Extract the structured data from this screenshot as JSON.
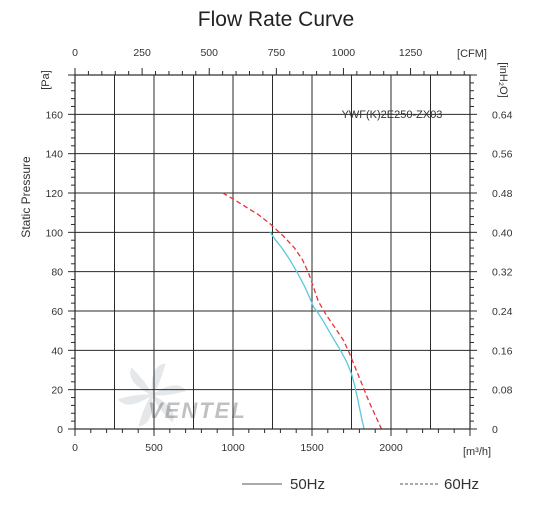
{
  "chart_data": {
    "type": "line",
    "title": "Flow Rate Curve",
    "model": "YWF(K)2E250-ZX03",
    "watermark_logo_text": "VENTEL",
    "xlabel": "",
    "xunit": "[m³/h]",
    "x2unit": "[CFM]",
    "ylabel": "Static Pressure",
    "yunit": "[Pa]",
    "y2unit": "[inH₂O]",
    "xlim": [
      0,
      2500
    ],
    "ylim": [
      0,
      180
    ],
    "x_ticks": [
      0,
      500,
      1000,
      1500,
      2000
    ],
    "x_tick_labels": [
      "0",
      "500",
      "1000",
      "1500",
      "2000"
    ],
    "x2_ticks_m3h": [
      0,
      424.75,
      849.5,
      1274.25,
      1699,
      2123.75
    ],
    "x2_tick_labels": [
      "0",
      "250",
      "500",
      "750",
      "1000",
      "1250"
    ],
    "y_ticks": [
      0,
      20,
      40,
      60,
      80,
      100,
      120,
      140,
      160
    ],
    "y_tick_labels": [
      "0",
      "20",
      "40",
      "60",
      "80",
      "100",
      "120",
      "140",
      "160"
    ],
    "y2_tick_labels": [
      "0",
      "0.08",
      "0.16",
      "0.24",
      "0.32",
      "0.40",
      "0.48",
      "0.56",
      "0.64"
    ],
    "grid": true,
    "legend_position": "bottom",
    "series": [
      {
        "name": "50Hz",
        "color": "#5bc8dc",
        "style": "solid",
        "x": [
          1235,
          1270,
          1310,
          1360,
          1410,
          1450,
          1490,
          1510,
          1530,
          1570,
          1620,
          1680,
          1720,
          1750,
          1770,
          1790,
          1810,
          1830
        ],
        "y": [
          100,
          96,
          92,
          86,
          79,
          73,
          66,
          62,
          60,
          55,
          48,
          40,
          34,
          28,
          22,
          15,
          7,
          0
        ]
      },
      {
        "name": "60Hz",
        "color": "#e8313a",
        "style": "dashed",
        "x": [
          935,
          1000,
          1080,
          1160,
          1240,
          1320,
          1390,
          1440,
          1480,
          1510,
          1540,
          1590,
          1650,
          1700,
          1740,
          1780,
          1820,
          1860,
          1900,
          1940
        ],
        "y": [
          120,
          117,
          113,
          109,
          104,
          98,
          92,
          86,
          79,
          72,
          65,
          58,
          51,
          45,
          38,
          30,
          22,
          14,
          7,
          0
        ]
      }
    ]
  }
}
